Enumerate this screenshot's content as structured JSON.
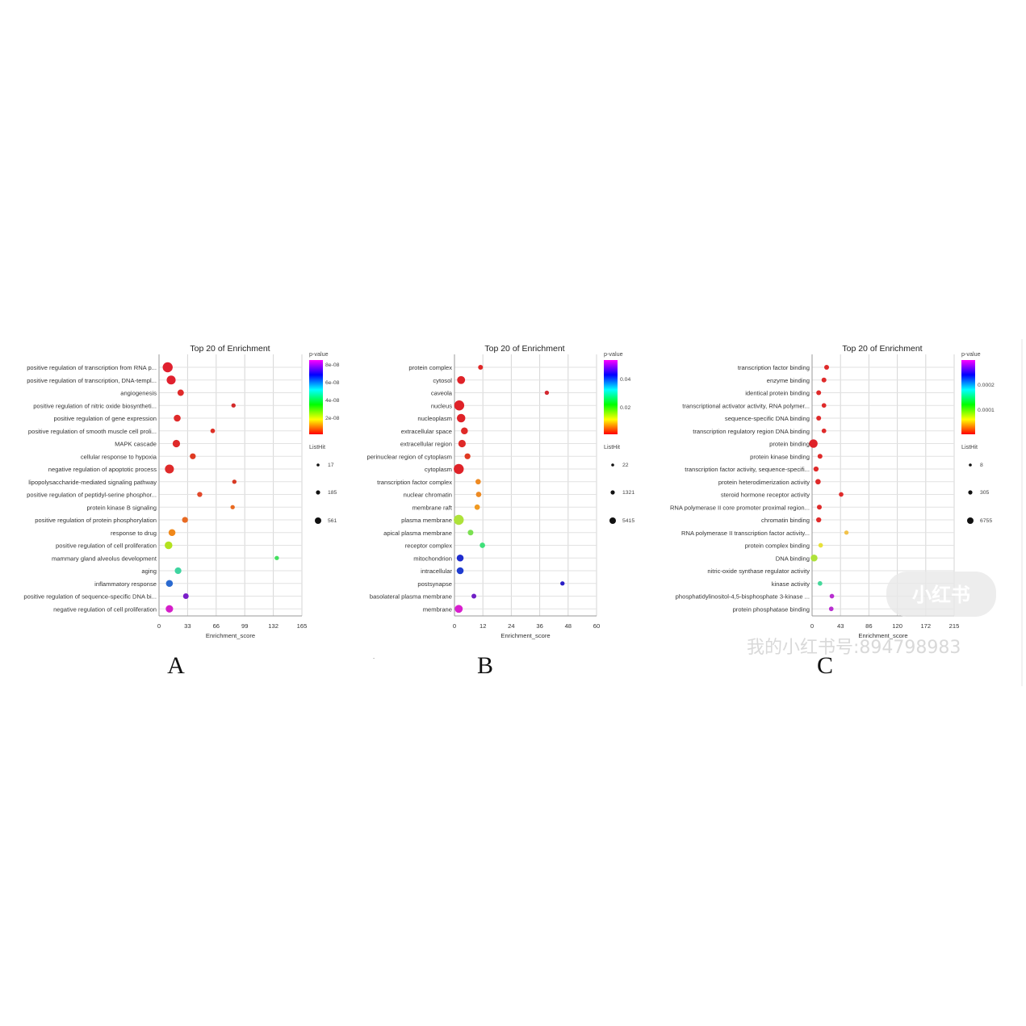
{
  "panels": [
    {
      "letter": "A",
      "title": "Top 20 of  Enrichment",
      "xlabel": "Enrichment_score",
      "legend_color_title": "p-value",
      "legend_size_title": "ListHit",
      "colorbar_ticks": [
        "8e-08",
        "6e-08",
        "4e-08",
        "2e-08"
      ],
      "size_ticks": [
        "17",
        "185",
        "561"
      ],
      "chart_data": {
        "type": "scatter",
        "title": "Top 20 of  Enrichment",
        "xlabel": "Enrichment_score",
        "xticks": [
          "0",
          "33",
          "66",
          "99",
          "132",
          "165"
        ],
        "xlim": [
          0,
          165
        ],
        "categories": [
          "positive regulation of transcription from RNA p...",
          "positive regulation of transcription, DNA-templ...",
          "angiogenesis",
          "positive regulation of nitric oxide biosyntheti...",
          "positive regulation of gene expression",
          "positive regulation of smooth muscle cell proli...",
          "MAPK cascade",
          "cellular response to hypoxia",
          "negative regulation of apoptotic process",
          "lipopolysaccharide-mediated signaling pathway",
          "positive regulation of peptidyl-serine phosphor...",
          "protein kinase B signaling",
          "positive regulation of protein phosphorylation",
          "response to drug",
          "positive regulation of cell proliferation",
          "mammary gland alveolus development",
          "aging",
          "inflammatory response",
          "positive regulation of sequence-specific DNA bi...",
          "negative regulation of cell proliferation"
        ],
        "x": [
          10,
          14,
          25,
          86,
          21,
          62,
          20,
          39,
          12,
          87,
          47,
          85,
          30,
          15,
          11,
          136,
          22,
          12,
          31,
          12
        ],
        "size_rank": [
          3,
          2.6,
          1.6,
          0.8,
          1.8,
          0.9,
          2,
          1.4,
          2.6,
          0.8,
          1.1,
          0.8,
          1.4,
          1.8,
          2.1,
          0.8,
          1.7,
          1.8,
          1.3,
          2
        ],
        "colors": [
          "#e0202e",
          "#e0202e",
          "#df2a2a",
          "#d32a2a",
          "#df2a2a",
          "#de3026",
          "#df2a2a",
          "#df3a22",
          "#df2a2a",
          "#d83a24",
          "#e2482a",
          "#e96a20",
          "#e86a22",
          "#f0881a",
          "#b3e21f",
          "#44e060",
          "#3fd4a0",
          "#2a6ad0",
          "#7a1ec9",
          "#d51ec9"
        ]
      }
    },
    {
      "letter": "B",
      "title": "Top 20 of  Enrichment",
      "xlabel": "Enrichment_score",
      "legend_color_title": "p-value",
      "legend_size_title": "ListHit",
      "colorbar_ticks": [
        "0.04",
        "0.02"
      ],
      "size_ticks": [
        "22",
        "1321",
        "5415"
      ],
      "chart_data": {
        "type": "scatter",
        "title": "Top 20 of  Enrichment",
        "xlabel": "Enrichment_score",
        "xticks": [
          "0",
          "12",
          "24",
          "36",
          "48",
          "60"
        ],
        "xlim": [
          0,
          60
        ],
        "categories": [
          "protein complex",
          "cytosol",
          "caveola",
          "nucleus",
          "nucleoplasm",
          "extracellular space",
          "extracellular region",
          "perinuclear region of cytoplasm",
          "cytoplasm",
          "transcription factor complex",
          "nuclear chromatin",
          "membrane raft",
          "plasma membrane",
          "apical plasma membrane",
          "receptor complex",
          "mitochondrion",
          "intracellular",
          "postsynapse",
          "basolateral plasma membrane",
          "membrane"
        ],
        "x": [
          11,
          2.8,
          39,
          2,
          2.8,
          4.2,
          3.2,
          5.5,
          1.8,
          10,
          10.2,
          9.6,
          1.8,
          6.8,
          11.8,
          2.4,
          2.4,
          45.6,
          8.2,
          1.8
        ],
        "size_rank": [
          1,
          2.2,
          0.8,
          3,
          2.4,
          1.8,
          2,
          1.4,
          3,
          1.2,
          1.2,
          1.2,
          3,
          1.3,
          1.2,
          1.8,
          1.8,
          0.8,
          1,
          2.2
        ],
        "colors": [
          "#e02626",
          "#df2228",
          "#d42830",
          "#df2228",
          "#df2228",
          "#df2a28",
          "#df2a28",
          "#e03a22",
          "#df2228",
          "#ee8a22",
          "#ee8a22",
          "#f09a22",
          "#aee23a",
          "#7ae050",
          "#40e07a",
          "#1f2ccf",
          "#1f3ccf",
          "#2a1ec6",
          "#7020c6",
          "#d81ece"
        ]
      }
    },
    {
      "letter": "C",
      "title": "Top 20 of  Enrichment",
      "xlabel": "Enrichment_score",
      "legend_color_title": "p-value",
      "legend_size_title": "ListHit",
      "colorbar_ticks": [
        "0.0002",
        "0.0001"
      ],
      "size_ticks": [
        "8",
        "305",
        "6755"
      ],
      "chart_data": {
        "type": "scatter",
        "title": "Top 20 of  Enrichment",
        "xlabel": "Enrichment_score",
        "xticks": [
          "0",
          "43",
          "86",
          "120",
          "172",
          "215"
        ],
        "xlim": [
          0,
          215
        ],
        "categories": [
          "transcription factor binding",
          "enzyme binding",
          "identical protein binding",
          "transcriptional activator activity, RNA polymer...",
          "sequence-specific DNA binding",
          "transcription regulatory region DNA binding",
          "protein binding",
          "protein kinase binding",
          "transcription factor activity, sequence-specifi...",
          "protein heterodimerization activity",
          "steroid hormone receptor activity",
          "RNA polymerase II core promoter proximal region...",
          "chromatin binding",
          "RNA polymerase II transcription factor activity...",
          "protein complex binding",
          "DNA binding",
          "nitric-oxide synthase regulator activity",
          "kinase activity",
          "phosphatidylinositol-4,5-bisphosphate 3-kinase ...",
          "protein phosphatase binding"
        ],
        "x": [
          22,
          18,
          10,
          18,
          10,
          18,
          2,
          12,
          6,
          9,
          44,
          11,
          10,
          52,
          13,
          3,
          null,
          12,
          30,
          29
        ],
        "size_rank": [
          1,
          1,
          1,
          0.9,
          1,
          0.9,
          2.4,
          1,
          1.1,
          1.2,
          0.9,
          1,
          1.1,
          0.8,
          0.9,
          1.8,
          0,
          0.9,
          0.9,
          0.9
        ],
        "colors": [
          "#df2a2a",
          "#df2a2a",
          "#df2a2a",
          "#df2a2a",
          "#df2a2a",
          "#df2a2a",
          "#df2228",
          "#df2a2a",
          "#df2a2a",
          "#df2a2a",
          "#df2a2a",
          "#df2a2a",
          "#df2a2a",
          "#f2c24a",
          "#e8e23a",
          "#aee23a",
          "#ffffff",
          "#44d89a",
          "#b82ed0",
          "#b82ed0"
        ]
      }
    }
  ],
  "watermark": {
    "logo_text": "小红书",
    "id_text": "我的小红书号:894798983"
  },
  "stray_mark": "."
}
